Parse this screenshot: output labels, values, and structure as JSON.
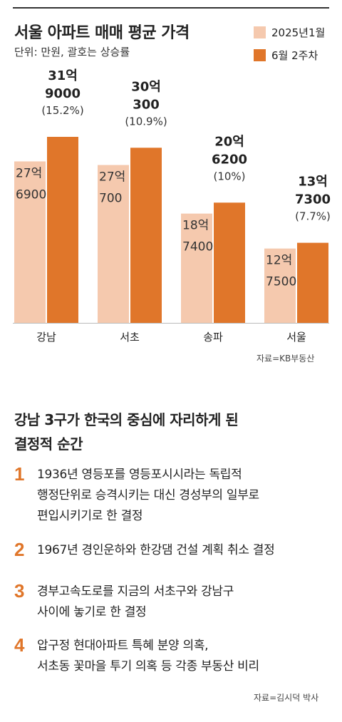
{
  "header": {
    "title": "서울 아파트 매매 평균 가격",
    "unit": "단위: 만원, 괄호는 상승률"
  },
  "legend": [
    {
      "label": "2025년1월",
      "color": "#f5c9ae"
    },
    {
      "label": "6월 2주차",
      "color": "#e0762a"
    }
  ],
  "chart_data": {
    "type": "bar",
    "title": "서울 아파트 매매 평균 가격",
    "unit": "단위: 만원, 괄호는 상승률",
    "categories": [
      "강남",
      "서초",
      "송파",
      "서울"
    ],
    "series": [
      {
        "name": "2025년1월",
        "color": "#f5c9ae",
        "values": [
          276900,
          270700,
          187400,
          127500
        ],
        "labels": [
          [
            "27억",
            "6900"
          ],
          [
            "27억",
            "700"
          ],
          [
            "18억",
            "7400"
          ],
          [
            "12억",
            "7500"
          ]
        ]
      },
      {
        "name": "6월 2주차",
        "color": "#e0762a",
        "values": [
          319000,
          300300,
          206200,
          137300
        ],
        "labels": [
          [
            "31억",
            "9000"
          ],
          [
            "30억",
            "300"
          ],
          [
            "20억",
            "6200"
          ],
          [
            "13억",
            "7300"
          ]
        ],
        "pct": [
          "(15.2%)",
          "(10.9%)",
          "(10%)",
          "(7.7%)"
        ]
      }
    ],
    "legend_position": "top-right",
    "grid": false
  },
  "source_chart": "자료=KB부동산",
  "section": {
    "title_lines": [
      "강남 3구가 한국의 중심에 자리하게 된",
      "결정적 순간"
    ],
    "items": [
      {
        "num": "1",
        "lines": [
          "1936년 영등포를 영등포시시라는 독립적",
          "행정단위로 승격시키는 대신 경성부의 일부로",
          "편입시키기로 한 결정"
        ]
      },
      {
        "num": "2",
        "lines": [
          "1967년 경인운하와 한강댐 건설 계획 취소 결정"
        ]
      },
      {
        "num": "3",
        "lines": [
          "경부고속도로를 지금의 서초구와 강남구",
          "사이에 놓기로 한 결정"
        ]
      },
      {
        "num": "4",
        "lines": [
          "압구정 현대아파트 특혜 분양 의혹,",
          "서초동 꽃마을 투기 의혹 등 각종 부동산 비리"
        ]
      }
    ]
  },
  "source_text": "자료=김시덕 박사"
}
